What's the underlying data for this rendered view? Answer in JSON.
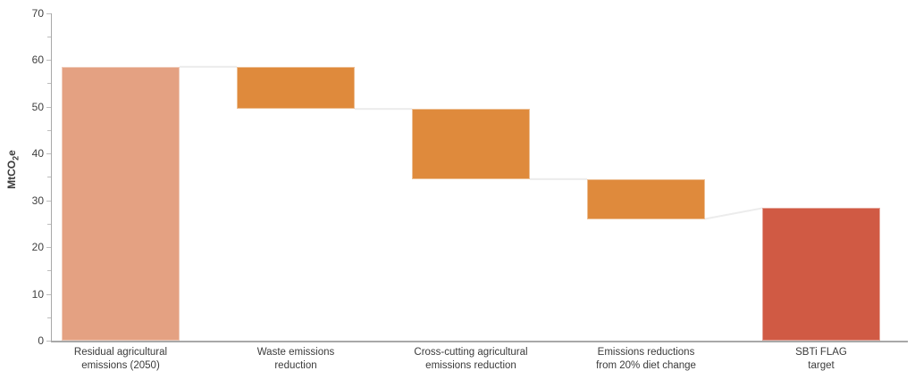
{
  "chart_data": {
    "type": "bar",
    "variant": "waterfall",
    "title": "",
    "xlabel": "",
    "ylabel": "MtCO₂e",
    "ylabel_pre": "MtCO",
    "ylabel_sub": "2",
    "ylabel_post": "e",
    "ylim": [
      0,
      70
    ],
    "yticks": [
      0,
      10,
      20,
      30,
      40,
      50,
      60,
      70
    ],
    "minor_tick_step": 5,
    "grid": false,
    "legend": "none",
    "categories": [
      "Residual agricultural emissions (2050)",
      "Waste emissions reduction",
      "Cross-cutting agricultural emissions reduction",
      "Emissions reductions from 20% diet change",
      "SBTi FLAG target"
    ],
    "bars": [
      {
        "label": "Residual agricultural emissions (2050)",
        "label_lines": [
          "Residual agricultural",
          "emissions (2050)"
        ],
        "start": 0,
        "end": 58.5,
        "delta": 58.5,
        "role": "total-start",
        "color": "#E4A182"
      },
      {
        "label": "Waste emissions reduction",
        "label_lines": [
          "Waste emissions",
          "reduction"
        ],
        "start": 58.5,
        "end": 49.5,
        "delta": -9,
        "role": "decrease",
        "color": "#DF8A3C"
      },
      {
        "label": "Cross-cutting agricultural emissions reduction",
        "label_lines": [
          "Cross-cutting agricultural",
          "emissions reduction"
        ],
        "start": 49.5,
        "end": 34.5,
        "delta": -15,
        "role": "decrease",
        "color": "#DF8A3C"
      },
      {
        "label": "Emissions reductions from 20% diet change",
        "label_lines": [
          "Emissions reductions",
          "from 20% diet change"
        ],
        "start": 34.5,
        "end": 26,
        "delta": -8.5,
        "role": "decrease",
        "color": "#DF8A3C"
      },
      {
        "label": "SBTi FLAG target",
        "label_lines": [
          "SBTi FLAG",
          "target"
        ],
        "start": 0,
        "end": 28.3,
        "delta": 28.3,
        "role": "total-end",
        "color": "#D05A44"
      }
    ],
    "colors": {
      "connector_line": "#ECECEC",
      "axis_line": "#A8A8A8",
      "tick_mark": "#BDBDBD",
      "text": "#3b3b3b"
    }
  }
}
